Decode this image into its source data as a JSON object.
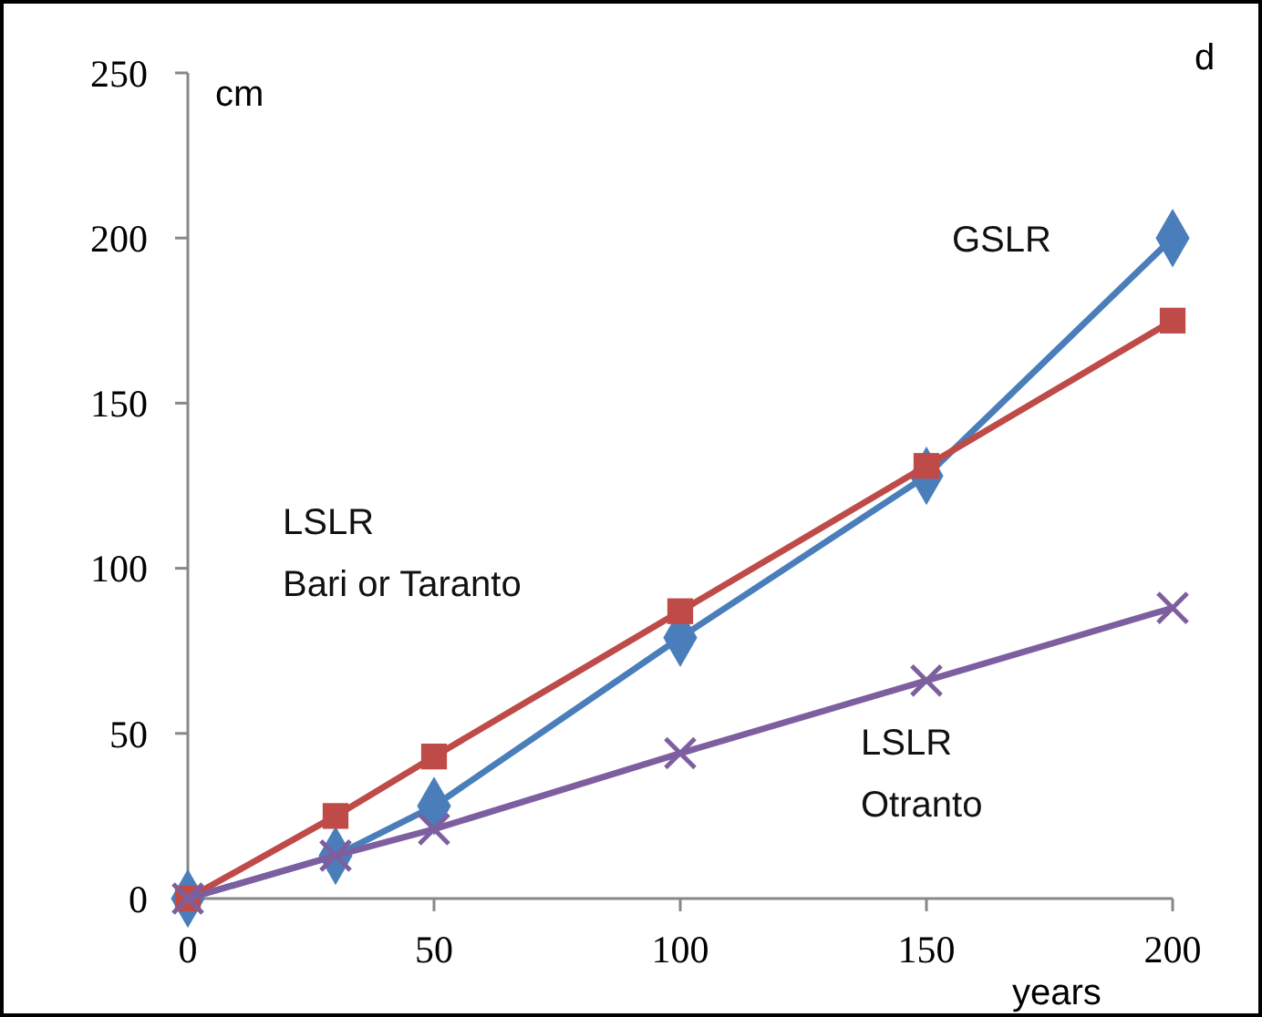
{
  "chart_data": {
    "type": "line",
    "xlabel": "years",
    "ylabel": "cm",
    "annotations": [
      "d"
    ],
    "x": [
      0,
      30,
      50,
      100,
      150,
      200
    ],
    "series": [
      {
        "name": "GSLR",
        "color": "#4a7ebb",
        "marker": "diamond",
        "values": [
          0,
          13,
          28,
          79,
          128,
          200
        ]
      },
      {
        "name": "LSLR\nBari or Taranto",
        "color": "#be4b48",
        "marker": "square",
        "values": [
          0,
          25,
          43,
          87,
          131,
          175
        ]
      },
      {
        "name": "LSLR\nOtranto",
        "color": "#7d5fa0",
        "marker": "cross",
        "values": [
          0,
          13,
          21,
          44,
          66,
          88
        ]
      }
    ],
    "xlim": [
      0,
      200
    ],
    "xticks": [
      0,
      50,
      100,
      150,
      200
    ],
    "ylim": [
      0,
      250
    ],
    "yticks": [
      0,
      50,
      100,
      150,
      200,
      250
    ],
    "grid": false,
    "legend": false
  }
}
